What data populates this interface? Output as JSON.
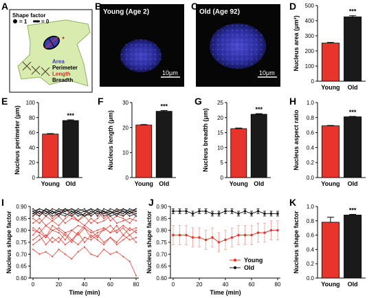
{
  "panel_labels": {
    "A": "A",
    "B": "B",
    "C": "C",
    "D": "D",
    "E": "E",
    "F": "F",
    "G": "G",
    "H": "H",
    "I": "I",
    "J": "J",
    "K": "K"
  },
  "schematic": {
    "shape_factor_title": "Shape factor",
    "shape_factor_round": "= 1",
    "shape_factor_line": "= 0",
    "legend": [
      {
        "label": "Area",
        "color": "#3b3fb0"
      },
      {
        "label": "Perimeter",
        "color": "#000000"
      },
      {
        "label": "Length",
        "color": "#d9332a"
      },
      {
        "label": "Breadth",
        "color": "#000000"
      }
    ]
  },
  "images": {
    "young": {
      "title": "Young (Age 2)",
      "scale": "10μm"
    },
    "old": {
      "title": "Old (Age 92)",
      "scale": "10μm"
    }
  },
  "colors": {
    "young": "#e8352b",
    "old": "#1a1a1a",
    "young_light": "#f0a59c"
  },
  "chart_data": [
    {
      "id": "D",
      "type": "bar",
      "categories": [
        "Young",
        "Old"
      ],
      "values": [
        252,
        425
      ],
      "errors": [
        4,
        8
      ],
      "ylabel": "Nucleus area (μm²)",
      "ylim": [
        0,
        500
      ],
      "yticks": [
        0,
        100,
        200,
        300,
        400,
        500
      ],
      "significance": "***"
    },
    {
      "id": "E",
      "type": "bar",
      "categories": [
        "Young",
        "Old"
      ],
      "values": [
        58,
        76
      ],
      "errors": [
        0.6,
        1
      ],
      "ylabel": "Nucleus perimeter (μm)",
      "ylim": [
        0,
        100
      ],
      "yticks": [
        0,
        20,
        40,
        60,
        80,
        100
      ],
      "significance": "***"
    },
    {
      "id": "F",
      "type": "bar",
      "categories": [
        "Young",
        "Old"
      ],
      "values": [
        21,
        26.5
      ],
      "errors": [
        0.2,
        0.3
      ],
      "ylabel": "Nucleus length (μm)",
      "ylim": [
        0,
        30
      ],
      "yticks": [
        0,
        10,
        20,
        30
      ],
      "significance": "***"
    },
    {
      "id": "G",
      "type": "bar",
      "categories": [
        "Young",
        "Old"
      ],
      "values": [
        16.3,
        21.1
      ],
      "errors": [
        0.2,
        0.2
      ],
      "ylabel": "Nucleus breadth (μm)",
      "ylim": [
        0,
        25
      ],
      "yticks": [
        0,
        5,
        10,
        15,
        20,
        25
      ],
      "significance": "***"
    },
    {
      "id": "H",
      "type": "bar",
      "categories": [
        "Young",
        "Old"
      ],
      "values": [
        0.69,
        0.81
      ],
      "errors": [
        0.005,
        0.005
      ],
      "ylabel": "Nucleus aspect ratio",
      "ylim": [
        0,
        1.0
      ],
      "yticks": [
        "0.0",
        "0.2",
        "0.4",
        "0.6",
        "0.8",
        "1.0"
      ],
      "significance": "***"
    },
    {
      "id": "I",
      "type": "line",
      "x": [
        0,
        5,
        10,
        15,
        20,
        25,
        30,
        35,
        40,
        45,
        50,
        55,
        60,
        65,
        70,
        75,
        80
      ],
      "xlabel": "Time (min)",
      "ylabel": "Nucleus shape factor",
      "ylim": [
        0.6,
        0.9
      ],
      "xlim": [
        0,
        80
      ],
      "yticks": [
        "0.60",
        "0.65",
        "0.70",
        "0.75",
        "0.80",
        "0.85",
        "0.90"
      ],
      "xticks": [
        0,
        20,
        40,
        60,
        80
      ],
      "series": [
        {
          "group": "Young",
          "values": [
            0.72,
            0.7,
            0.71,
            0.69,
            0.72,
            0.7,
            0.68,
            0.71,
            0.73,
            0.7,
            0.69,
            0.72,
            0.7,
            0.71,
            0.69,
            0.67,
            0.61
          ]
        },
        {
          "group": "Young",
          "values": [
            0.76,
            0.78,
            0.74,
            0.77,
            0.75,
            0.79,
            0.76,
            0.74,
            0.77,
            0.76,
            0.78,
            0.75,
            0.77,
            0.74,
            0.76,
            0.78,
            0.75
          ]
        },
        {
          "group": "Young",
          "values": [
            0.8,
            0.79,
            0.82,
            0.8,
            0.81,
            0.79,
            0.8,
            0.82,
            0.81,
            0.79,
            0.8,
            0.81,
            0.79,
            0.8,
            0.82,
            0.8,
            0.81
          ]
        },
        {
          "group": "Young",
          "values": [
            0.83,
            0.85,
            0.82,
            0.84,
            0.86,
            0.83,
            0.85,
            0.84,
            0.82,
            0.85,
            0.83,
            0.84,
            0.86,
            0.83,
            0.84,
            0.85,
            0.84
          ]
        },
        {
          "group": "Young",
          "values": [
            0.85,
            0.83,
            0.86,
            0.84,
            0.82,
            0.85,
            0.87,
            0.84,
            0.86,
            0.83,
            0.85,
            0.88,
            0.84,
            0.86,
            0.85,
            0.83,
            0.86
          ]
        },
        {
          "group": "Young",
          "values": [
            0.78,
            0.81,
            0.77,
            0.8,
            0.79,
            0.76,
            0.8,
            0.78,
            0.81,
            0.77,
            0.79,
            0.8,
            0.82,
            0.79,
            0.81,
            0.78,
            0.8
          ]
        },
        {
          "group": "Young",
          "values": [
            0.74,
            0.76,
            0.78,
            0.75,
            0.77,
            0.74,
            0.76,
            0.79,
            0.75,
            0.78,
            0.76,
            0.74,
            0.77,
            0.75,
            0.78,
            0.76,
            0.77
          ]
        },
        {
          "group": "Young",
          "values": [
            0.81,
            0.79,
            0.77,
            0.82,
            0.8,
            0.78,
            0.75,
            0.79,
            0.82,
            0.8,
            0.77,
            0.81,
            0.79,
            0.82,
            0.78,
            0.81,
            0.79
          ]
        },
        {
          "group": "Young",
          "values": [
            0.87,
            0.86,
            0.88,
            0.85,
            0.87,
            0.89,
            0.86,
            0.84,
            0.87,
            0.86,
            0.88,
            0.85,
            0.87,
            0.89,
            0.86,
            0.88,
            0.87
          ]
        },
        {
          "group": "Old",
          "values": [
            0.88,
            0.89,
            0.88,
            0.87,
            0.89,
            0.88,
            0.89,
            0.87,
            0.88,
            0.89,
            0.88,
            0.87,
            0.89,
            0.88,
            0.87,
            0.89,
            0.88
          ]
        },
        {
          "group": "Old",
          "values": [
            0.87,
            0.88,
            0.86,
            0.88,
            0.87,
            0.86,
            0.88,
            0.87,
            0.86,
            0.88,
            0.87,
            0.88,
            0.86,
            0.87,
            0.88,
            0.86,
            0.87
          ]
        },
        {
          "group": "Old",
          "values": [
            0.89,
            0.87,
            0.89,
            0.88,
            0.86,
            0.89,
            0.87,
            0.89,
            0.88,
            0.87,
            0.89,
            0.88,
            0.87,
            0.89,
            0.88,
            0.87,
            0.89
          ]
        },
        {
          "group": "Old",
          "values": [
            0.86,
            0.88,
            0.87,
            0.89,
            0.88,
            0.87,
            0.86,
            0.88,
            0.89,
            0.86,
            0.88,
            0.87,
            0.88,
            0.86,
            0.89,
            0.88,
            0.86
          ]
        },
        {
          "group": "Old",
          "values": [
            0.88,
            0.86,
            0.89,
            0.87,
            0.88,
            0.89,
            0.88,
            0.86,
            0.87,
            0.89,
            0.86,
            0.89,
            0.88,
            0.87,
            0.86,
            0.88,
            0.89
          ]
        },
        {
          "group": "Old",
          "values": [
            0.87,
            0.89,
            0.88,
            0.86,
            0.87,
            0.88,
            0.89,
            0.88,
            0.86,
            0.87,
            0.89,
            0.86,
            0.87,
            0.88,
            0.89,
            0.87,
            0.88
          ]
        }
      ]
    },
    {
      "id": "J",
      "type": "line",
      "x": [
        0,
        5,
        10,
        15,
        20,
        25,
        30,
        35,
        40,
        45,
        50,
        55,
        60,
        65,
        70,
        75,
        80
      ],
      "xlabel": "Time (min)",
      "ylabel": "Nucleus shape factor",
      "ylim": [
        0.6,
        0.9
      ],
      "xlim": [
        0,
        80
      ],
      "yticks": [
        "0.60",
        "0.65",
        "0.70",
        "0.75",
        "0.80",
        "0.85",
        "0.90"
      ],
      "xticks": [
        0,
        20,
        40,
        60,
        80
      ],
      "legend": [
        "Young",
        "Old"
      ],
      "series": [
        {
          "name": "Young",
          "values": [
            0.78,
            0.78,
            0.78,
            0.77,
            0.77,
            0.76,
            0.77,
            0.75,
            0.76,
            0.77,
            0.78,
            0.78,
            0.78,
            0.79,
            0.79,
            0.8,
            0.8
          ],
          "errors": [
            0.04,
            0.04,
            0.04,
            0.04,
            0.04,
            0.04,
            0.04,
            0.04,
            0.04,
            0.04,
            0.04,
            0.04,
            0.04,
            0.04,
            0.04,
            0.04,
            0.04
          ]
        },
        {
          "name": "Old",
          "values": [
            0.88,
            0.88,
            0.88,
            0.87,
            0.88,
            0.88,
            0.87,
            0.87,
            0.88,
            0.88,
            0.87,
            0.88,
            0.87,
            0.88,
            0.87,
            0.87,
            0.87
          ],
          "errors": [
            0.01,
            0.01,
            0.01,
            0.01,
            0.01,
            0.01,
            0.01,
            0.01,
            0.01,
            0.01,
            0.01,
            0.01,
            0.01,
            0.01,
            0.01,
            0.01,
            0.01
          ]
        }
      ]
    },
    {
      "id": "K",
      "type": "bar",
      "categories": [
        "Young",
        "Old"
      ],
      "values": [
        0.78,
        0.88
      ],
      "errors": [
        0.07,
        0.01
      ],
      "ylabel": "Nucleus shape factor",
      "ylim": [
        0,
        1.0
      ],
      "yticks": [
        "0.0",
        "0.2",
        "0.4",
        "0.6",
        "0.8",
        "1.0"
      ],
      "significance": "***"
    }
  ]
}
